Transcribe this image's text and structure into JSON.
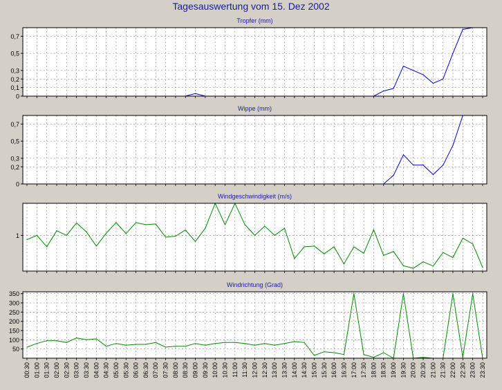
{
  "page": {
    "title": "Tagesauswertung vom 15. Dez 2002"
  },
  "colors": {
    "background": "#d4d0c8",
    "plot_bg": "#ffffff",
    "grid": "#808080",
    "blue": "#0000cc",
    "green": "#008800",
    "title": "#1a1aa0"
  },
  "chart_data": [
    {
      "type": "line",
      "title": "Tropfer (mm)",
      "ylim": [
        0,
        0.8
      ],
      "yticks": [
        0,
        0.1,
        0.2,
        0.3,
        0.5,
        0.7
      ],
      "ytick_labels": [
        "0",
        "0,1",
        "0,2",
        "0,3",
        "0,5",
        "0,7"
      ],
      "grid": true,
      "color": "#0000cc",
      "x": [
        "00:30",
        "01:00",
        "01:30",
        "02:00",
        "02:30",
        "03:00",
        "03:30",
        "04:00",
        "04:30",
        "05:00",
        "05:30",
        "06:00",
        "06:30",
        "07:00",
        "07:30",
        "08:00",
        "08:30",
        "09:00",
        "09:30",
        "10:00",
        "10:30",
        "11:00",
        "11:30",
        "12:00",
        "12:30",
        "13:00",
        "13:30",
        "14:00",
        "14:30",
        "15:00",
        "15:30",
        "16:00",
        "16:30",
        "17:00",
        "17:30",
        "18:00",
        "18:30",
        "19:00",
        "19:30",
        "20:00",
        "20:30",
        "21:00",
        "21:30",
        "22:00",
        "22:30",
        "23:00",
        "23:30"
      ],
      "values": [
        0,
        0,
        0,
        0,
        0,
        0,
        0,
        0,
        0,
        0,
        0,
        0,
        0,
        0,
        0,
        0,
        0,
        0.03,
        0,
        0,
        0,
        0,
        0,
        0,
        0,
        0,
        0,
        0,
        0,
        0,
        0,
        0,
        0,
        0,
        0,
        0,
        0.06,
        0.09,
        0.35,
        0.3,
        0.25,
        0.15,
        0.2,
        0.5,
        0.78,
        0.8,
        0.8
      ]
    },
    {
      "type": "line",
      "title": "Wippe (mm)",
      "ylim": [
        0,
        0.8
      ],
      "yticks": [
        0,
        0.2,
        0.3,
        0.5,
        0.7
      ],
      "ytick_labels": [
        "0",
        "0,2",
        "0,3",
        "0,5",
        "0,7"
      ],
      "grid": true,
      "color": "#0000cc",
      "x": [
        "00:30",
        "01:00",
        "01:30",
        "02:00",
        "02:30",
        "03:00",
        "03:30",
        "04:00",
        "04:30",
        "05:00",
        "05:30",
        "06:00",
        "06:30",
        "07:00",
        "07:30",
        "08:00",
        "08:30",
        "09:00",
        "09:30",
        "10:00",
        "10:30",
        "11:00",
        "11:30",
        "12:00",
        "12:30",
        "13:00",
        "13:30",
        "14:00",
        "14:30",
        "15:00",
        "15:30",
        "16:00",
        "16:30",
        "17:00",
        "17:30",
        "18:00",
        "18:30",
        "19:00",
        "19:30",
        "20:00",
        "20:30",
        "21:00",
        "21:30",
        "22:00",
        "22:30",
        "23:00",
        "23:30"
      ],
      "values": [
        null,
        null,
        null,
        null,
        null,
        null,
        null,
        null,
        null,
        null,
        null,
        null,
        null,
        null,
        null,
        null,
        null,
        null,
        null,
        null,
        null,
        null,
        null,
        null,
        null,
        null,
        null,
        null,
        null,
        null,
        null,
        null,
        null,
        null,
        null,
        null,
        0,
        0.1,
        0.34,
        0.22,
        0.22,
        0.11,
        0.22,
        0.45,
        0.8,
        0.8,
        0.8
      ]
    },
    {
      "type": "line",
      "title": "Windgeschwindigkeit (m/s)",
      "ylim": [
        0,
        1.9
      ],
      "yticks": [
        1
      ],
      "ytick_labels": [
        "1"
      ],
      "grid": true,
      "color": "#008800",
      "x": [
        "00:30",
        "01:00",
        "01:30",
        "02:00",
        "02:30",
        "03:00",
        "03:30",
        "04:00",
        "04:30",
        "05:00",
        "05:30",
        "06:00",
        "06:30",
        "07:00",
        "07:30",
        "08:00",
        "08:30",
        "09:00",
        "09:30",
        "10:00",
        "10:30",
        "11:00",
        "11:30",
        "12:00",
        "12:30",
        "13:00",
        "13:30",
        "14:00",
        "14:30",
        "15:00",
        "15:30",
        "16:00",
        "16:30",
        "17:00",
        "17:30",
        "18:00",
        "18:30",
        "19:00",
        "19:30",
        "20:00",
        "20:30",
        "21:00",
        "21:30",
        "22:00",
        "22:30",
        "23:00",
        "23:30"
      ],
      "values": [
        0.88,
        1.0,
        0.68,
        1.13,
        1.0,
        1.35,
        1.1,
        0.7,
        1.06,
        1.36,
        1.05,
        1.36,
        1.3,
        1.32,
        0.95,
        0.98,
        1.15,
        0.83,
        1.2,
        1.9,
        1.3,
        1.9,
        1.3,
        1.0,
        1.26,
        1.0,
        1.2,
        0.35,
        0.68,
        0.7,
        0.48,
        0.68,
        0.2,
        0.68,
        0.5,
        1.16,
        0.44,
        0.55,
        0.15,
        0.08,
        0.26,
        0.14,
        0.52,
        0.38,
        0.92,
        0.76,
        0.1
      ]
    },
    {
      "type": "line",
      "title": "Windrichtung (Grad)",
      "ylim": [
        0,
        360
      ],
      "yticks": [
        50,
        100,
        150,
        200,
        250,
        300,
        350
      ],
      "ytick_labels": [
        "50",
        "100",
        "150",
        "200",
        "250",
        "300",
        "350"
      ],
      "grid": true,
      "color": "#008800",
      "x": [
        "00:30",
        "01:00",
        "01:30",
        "02:00",
        "02:30",
        "03:00",
        "03:30",
        "04:00",
        "04:30",
        "05:00",
        "05:30",
        "06:00",
        "06:30",
        "07:00",
        "07:30",
        "08:00",
        "08:30",
        "09:00",
        "09:30",
        "10:00",
        "10:30",
        "11:00",
        "11:30",
        "12:00",
        "12:30",
        "13:00",
        "13:30",
        "14:00",
        "14:30",
        "15:00",
        "15:30",
        "16:00",
        "16:30",
        "17:00",
        "17:30",
        "18:00",
        "18:30",
        "19:00",
        "19:30",
        "20:00",
        "20:30",
        "21:00",
        "21:30",
        "22:00",
        "22:30",
        "23:00",
        "23:30"
      ],
      "values": [
        60,
        80,
        95,
        95,
        85,
        110,
        100,
        105,
        65,
        80,
        70,
        75,
        75,
        85,
        60,
        65,
        65,
        80,
        70,
        80,
        85,
        85,
        80,
        70,
        80,
        70,
        80,
        90,
        85,
        15,
        35,
        30,
        20,
        350,
        20,
        5,
        30,
        0,
        350,
        0,
        5,
        0,
        0,
        350,
        5,
        350,
        0
      ]
    }
  ]
}
